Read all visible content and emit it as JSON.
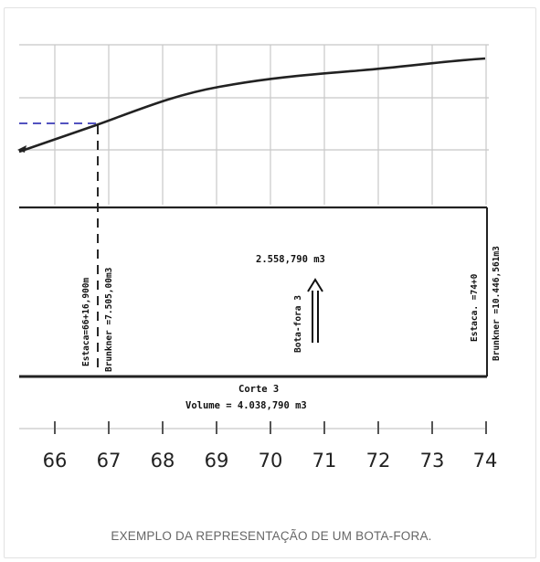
{
  "profile": {
    "station_marker": "Estaca=66+16,900m",
    "brunkner_at_marker": "Brunkner =7.505,00m3",
    "station_end": "Estaca. =74+0",
    "brunkner_at_end": "Brunkner =10.446,561m3",
    "bota_fora_volume": "2.558,790 m3",
    "bota_fora_label": "Bota-fora 3",
    "corte_label": "Corte 3",
    "corte_volume": "Volume = 4.038,790 m3"
  },
  "axis": {
    "ticks": [
      "66",
      "67",
      "68",
      "69",
      "70",
      "71",
      "72",
      "73",
      "74"
    ]
  },
  "caption": "EXEMPLO DA REPRESENTAÇÃO DE UM BOTA-FORA.",
  "colors": {
    "ink": "#111111",
    "grid": "#c8c8c8",
    "dashed_blue": "#3b3bb8",
    "caption": "#666666"
  }
}
